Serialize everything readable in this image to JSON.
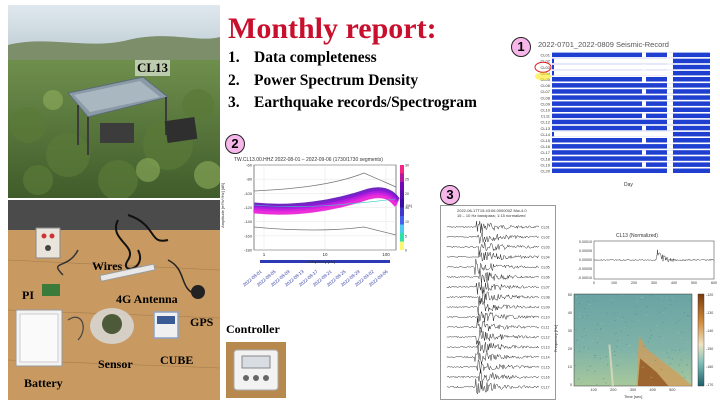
{
  "report": {
    "title": "Monthly report:",
    "items": [
      {
        "num": "1.",
        "text": "Data completeness"
      },
      {
        "num": "2.",
        "text": "Power Spectrum Density"
      },
      {
        "num": "3.",
        "text": "Earthquake records/Spectrogram"
      }
    ]
  },
  "photos": {
    "station_label": "CL13",
    "components": {
      "wires": "Wires",
      "pi": "PI",
      "antenna": "4G Antenna",
      "gps": "GPS",
      "sensor": "Sensor",
      "cube": "CUBE",
      "battery": "Battery",
      "controller": "Controller"
    }
  },
  "badges": {
    "one": "1",
    "two": "2",
    "three": "3"
  },
  "record_chart": {
    "title": "2022‑0701_2022‑0809 Seismic‑Record",
    "xlabel": "Day",
    "stations": [
      "CL01",
      "CL02",
      "CL03",
      "CL04",
      "CL05",
      "CL06",
      "CL07",
      "CL08",
      "CL09",
      "CL10",
      "CL11",
      "CL12",
      "CL13",
      "CL14",
      "CL15",
      "CL16",
      "CL17",
      "CL18",
      "CL19",
      "CL20"
    ],
    "colors": {
      "present": "#1f3fd1",
      "missing": "#ffffff",
      "outline": "#d22"
    }
  },
  "psd_chart": {
    "title": "TW.CL13.00.HHZ    2022‑08‑01 – 2022‑09‑06  (1730/1730 segments)",
    "xlabel": "Frequency [Hz]",
    "ylabel": "Amplitude [m²/s⁴/Hz] [dB]",
    "colorbar_label": "[%]",
    "y_ticks": [
      "-60",
      "-80",
      "-100",
      "-120",
      "-140",
      "-160",
      "-180"
    ],
    "x_ticks": [
      "1",
      "10",
      "100"
    ],
    "date_ticks": [
      "2022-08-01",
      "2022-08-05",
      "2022-08-09",
      "2022-08-13",
      "2022-08-17",
      "2022-08-21",
      "2022-08-25",
      "2022-08-29",
      "2022-09-02",
      "2022-09-06"
    ],
    "cbar_ticks": [
      "30",
      "25",
      "20",
      "15",
      "10",
      "5",
      "0"
    ]
  },
  "waveform_chart": {
    "title": "2022‑06‑17T15:43:06.000000Z  Mw‑4.0",
    "subtitle": "15 – 10 Hz bandpass; 1:15 normalized",
    "station_labels": [
      "CL01",
      "CL02",
      "CL03",
      "CL04",
      "CL05",
      "CL06",
      "CL07",
      "CL08",
      "CL09",
      "CL10",
      "CL11",
      "CL12",
      "CL13",
      "CL14",
      "CL15",
      "CL16",
      "CL17"
    ]
  },
  "single_trace": {
    "title": "CL13  (Normalized)",
    "y_ticks": [
      "0.00010",
      "0.00005",
      "0.00000",
      "-0.00005",
      "-0.00010"
    ],
    "x_ticks": [
      "0",
      "100",
      "200",
      "300",
      "400",
      "500",
      "600"
    ]
  },
  "spectrogram": {
    "ylabel": "Frequency [Hz]",
    "xlabel": "Time [sec]",
    "y_ticks": [
      "50",
      "40",
      "30",
      "20",
      "10",
      "0"
    ],
    "x_ticks": [
      "100",
      "200",
      "300",
      "400",
      "500"
    ],
    "cbar_ticks": [
      "-120",
      "-130",
      "-140",
      "-150",
      "-160",
      "-170"
    ]
  }
}
